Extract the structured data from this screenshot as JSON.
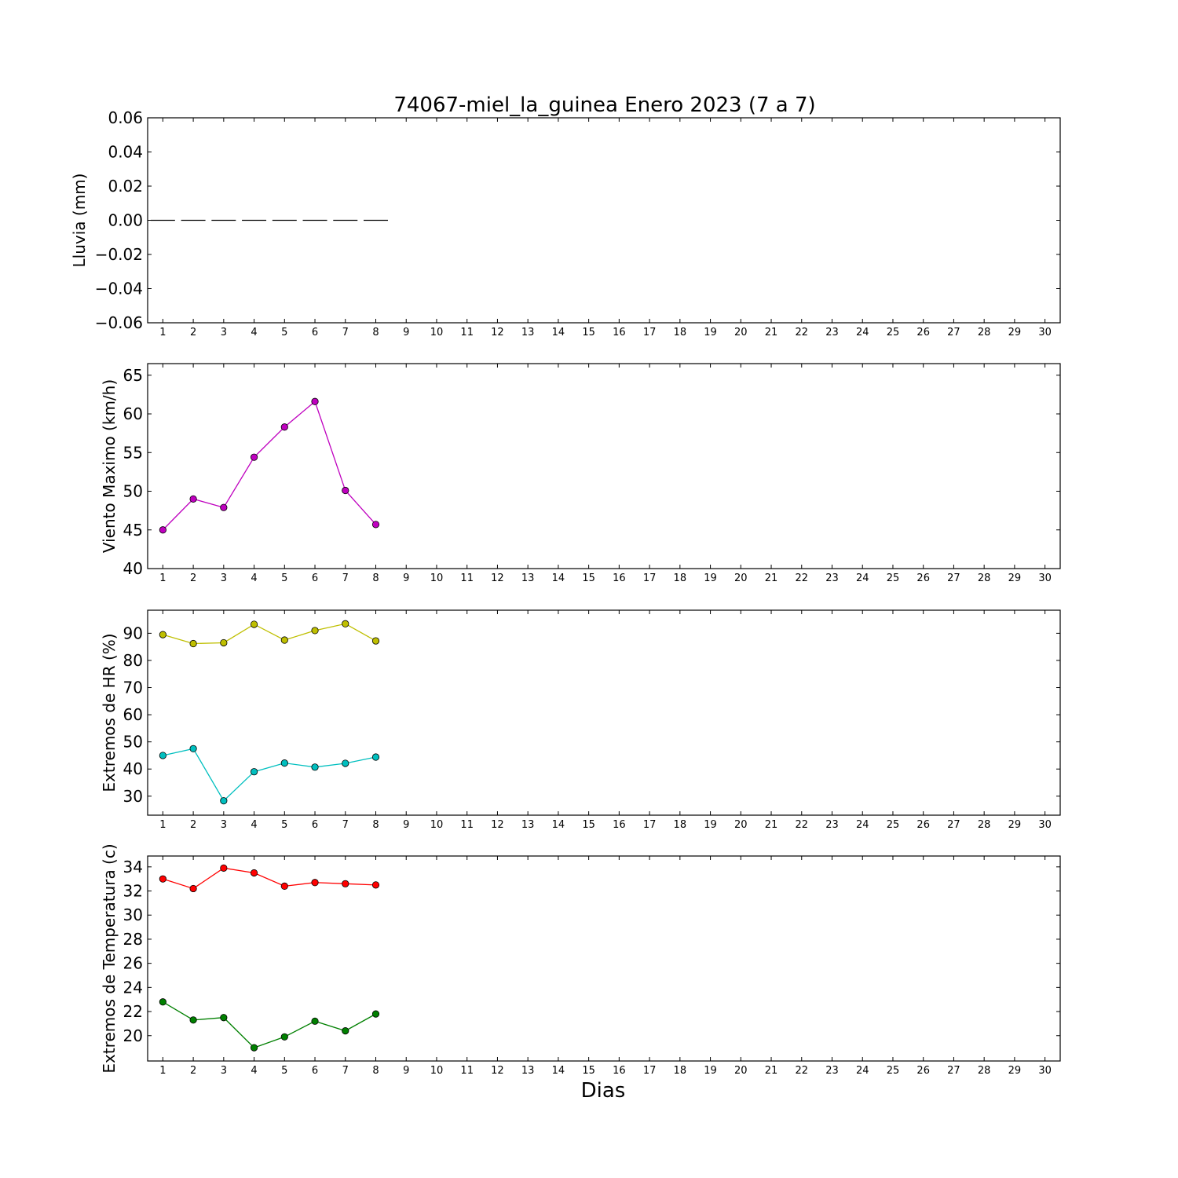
{
  "title": "74067-miel_la_guinea Enero 2023  (7 a 7)",
  "xlabel": "Dias",
  "x_ticks": [
    "1",
    "2",
    "3",
    "4",
    "5",
    "6",
    "7",
    "8",
    "9",
    "10",
    "11",
    "12",
    "13",
    "14",
    "15",
    "16",
    "17",
    "18",
    "19",
    "20",
    "21",
    "22",
    "23",
    "24",
    "25",
    "26",
    "27",
    "28",
    "29",
    "30"
  ],
  "chart_data": [
    {
      "type": "bar",
      "ylabel": "Lluvia (mm)",
      "ylim": [
        -0.06,
        0.06
      ],
      "y_ticks": [
        "0.06",
        "0.04",
        "0.02",
        "0.00",
        "−0.02",
        "−0.04",
        "−0.06"
      ],
      "y_tick_values": [
        0.06,
        0.04,
        0.02,
        0.0,
        -0.02,
        -0.04,
        -0.06
      ],
      "series": [
        {
          "color": "#000000",
          "x": [
            1,
            2,
            3,
            4,
            5,
            6,
            7,
            8
          ],
          "values": [
            0,
            0,
            0,
            0,
            0,
            0,
            0,
            0
          ]
        }
      ]
    },
    {
      "type": "line",
      "ylabel": "Viento Maximo (km/h)",
      "ylim": [
        40,
        66.5
      ],
      "y_ticks": [
        "65",
        "60",
        "55",
        "50",
        "45",
        "40"
      ],
      "y_tick_values": [
        65,
        60,
        55,
        50,
        45,
        40
      ],
      "series": [
        {
          "color": "#bf00bf",
          "x": [
            1,
            2,
            3,
            4,
            5,
            6,
            7,
            8
          ],
          "values": [
            45.0,
            49.0,
            47.9,
            54.4,
            58.3,
            61.6,
            50.1,
            45.7
          ]
        }
      ]
    },
    {
      "type": "line",
      "ylabel": "Extremos de HR (%)",
      "ylim": [
        23,
        98.5
      ],
      "y_ticks": [
        "90",
        "80",
        "70",
        "60",
        "50",
        "40",
        "30"
      ],
      "y_tick_values": [
        90,
        80,
        70,
        60,
        50,
        40,
        30
      ],
      "series": [
        {
          "color": "#bfbf00",
          "x": [
            1,
            2,
            3,
            4,
            5,
            6,
            7,
            8
          ],
          "values": [
            89.5,
            86.2,
            86.5,
            93.3,
            87.5,
            91.0,
            93.5,
            87.2
          ]
        },
        {
          "color": "#00bfbf",
          "x": [
            1,
            2,
            3,
            4,
            5,
            6,
            7,
            8
          ],
          "values": [
            45.0,
            47.5,
            28.3,
            39.0,
            42.2,
            40.7,
            42.1,
            44.4
          ]
        }
      ]
    },
    {
      "type": "line",
      "ylabel": "Extremos de Temperatura (c)",
      "ylim": [
        17.9,
        34.9
      ],
      "y_ticks": [
        "34",
        "32",
        "30",
        "28",
        "26",
        "24",
        "22",
        "20"
      ],
      "y_tick_values": [
        34,
        32,
        30,
        28,
        26,
        24,
        22,
        20
      ],
      "series": [
        {
          "color": "#ff0000",
          "x": [
            1,
            2,
            3,
            4,
            5,
            6,
            7,
            8
          ],
          "values": [
            33.0,
            32.2,
            33.9,
            33.5,
            32.4,
            32.7,
            32.6,
            32.5
          ]
        },
        {
          "color": "#008000",
          "x": [
            1,
            2,
            3,
            4,
            5,
            6,
            7,
            8
          ],
          "values": [
            22.8,
            21.3,
            21.5,
            19.0,
            19.9,
            21.2,
            20.4,
            21.8
          ]
        }
      ]
    }
  ]
}
